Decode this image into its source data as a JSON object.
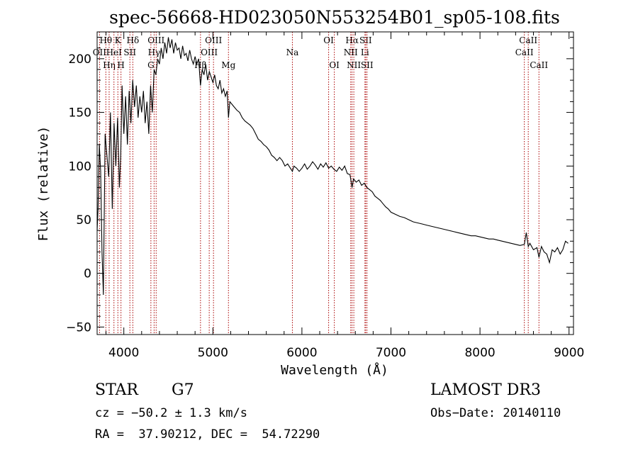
{
  "chart_data": {
    "type": "line",
    "title": "spec-56668-HD023050N553254B01_sp05-108.fits",
    "xlabel": "Wavelength (Å)",
    "ylabel": "Flux (relative)",
    "xlim": [
      3700,
      9050
    ],
    "ylim": [
      -57,
      225
    ],
    "xticks": [
      4000,
      5000,
      6000,
      7000,
      8000,
      9000
    ],
    "yticks": [
      -50,
      0,
      50,
      100,
      150,
      200
    ],
    "grid": false,
    "line_color": "#000000",
    "marker_color": "#aa0000",
    "series": [
      {
        "x": [
          3700,
          3710,
          3725,
          3740,
          3755,
          3770,
          3790,
          3810,
          3830,
          3850,
          3870,
          3890,
          3910,
          3930,
          3950,
          3965,
          3980,
          4000,
          4020,
          4040,
          4060,
          4080,
          4100,
          4120,
          4140,
          4160,
          4180,
          4200,
          4220,
          4240,
          4260,
          4280,
          4300,
          4320,
          4340,
          4360,
          4380,
          4400,
          4420,
          4440,
          4460,
          4480,
          4500,
          4520,
          4540,
          4560,
          4580,
          4600,
          4620,
          4640,
          4660,
          4680,
          4700,
          4720,
          4740,
          4760,
          4780,
          4800,
          4820,
          4840,
          4861,
          4880,
          4900,
          4920,
          4940,
          4960,
          4980,
          5000,
          5020,
          5040,
          5060,
          5080,
          5100,
          5120,
          5140,
          5160,
          5175,
          5190,
          5210,
          5240,
          5270,
          5300,
          5330,
          5360,
          5390,
          5420,
          5450,
          5480,
          5510,
          5540,
          5570,
          5600,
          5630,
          5660,
          5690,
          5720,
          5750,
          5780,
          5810,
          5840,
          5870,
          5893,
          5910,
          5940,
          5970,
          6000,
          6030,
          6060,
          6090,
          6120,
          6150,
          6180,
          6210,
          6240,
          6270,
          6300,
          6330,
          6360,
          6390,
          6420,
          6450,
          6480,
          6510,
          6540,
          6563,
          6580,
          6610,
          6640,
          6670,
          6700,
          6730,
          6760,
          6790,
          6820,
          6850,
          6880,
          6910,
          6940,
          6970,
          7000,
          7050,
          7100,
          7150,
          7200,
          7250,
          7300,
          7350,
          7400,
          7450,
          7500,
          7550,
          7600,
          7650,
          7700,
          7750,
          7800,
          7850,
          7900,
          7950,
          8000,
          8050,
          8100,
          8150,
          8200,
          8250,
          8300,
          8350,
          8400,
          8450,
          8498,
          8520,
          8542,
          8560,
          8600,
          8640,
          8662,
          8690,
          8720,
          8750,
          8780,
          8810,
          8840,
          8870,
          8900,
          8930,
          8960,
          8990
        ],
        "y": [
          40,
          60,
          120,
          95,
          20,
          -20,
          130,
          110,
          90,
          150,
          60,
          140,
          100,
          145,
          80,
          110,
          175,
          130,
          165,
          120,
          170,
          140,
          180,
          155,
          175,
          145,
          165,
          150,
          170,
          140,
          160,
          130,
          175,
          150,
          190,
          185,
          200,
          195,
          210,
          200,
          215,
          205,
          220,
          210,
          218,
          205,
          215,
          208,
          210,
          200,
          212,
          203,
          205,
          198,
          208,
          200,
          195,
          202,
          195,
          200,
          175,
          190,
          185,
          195,
          180,
          188,
          183,
          178,
          185,
          175,
          172,
          180,
          168,
          172,
          165,
          170,
          145,
          160,
          158,
          155,
          152,
          150,
          145,
          142,
          140,
          138,
          135,
          130,
          125,
          123,
          120,
          118,
          115,
          110,
          108,
          105,
          108,
          105,
          100,
          102,
          98,
          95,
          100,
          98,
          95,
          98,
          102,
          97,
          100,
          104,
          101,
          97,
          102,
          99,
          103,
          98,
          100,
          97,
          95,
          99,
          96,
          100,
          93,
          92,
          80,
          88,
          85,
          87,
          82,
          84,
          80,
          78,
          76,
          72,
          70,
          68,
          65,
          62,
          60,
          57,
          55,
          53,
          52,
          50,
          48,
          47,
          46,
          45,
          44,
          43,
          42,
          41,
          40,
          39,
          38,
          37,
          36,
          35,
          35,
          34,
          33,
          32,
          32,
          31,
          30,
          29,
          28,
          27,
          26,
          27,
          38,
          25,
          28,
          22,
          24,
          15,
          25,
          20,
          18,
          10,
          22,
          20,
          24,
          18,
          22,
          30,
          28
        ]
      }
    ],
    "line_markers": [
      {
        "label": "Hθ",
        "x": 3798,
        "row": 0
      },
      {
        "label": "OII",
        "x": 3727,
        "row": 1
      },
      {
        "label": "Hη",
        "x": 3835,
        "row": 2
      },
      {
        "label": "K",
        "x": 3933,
        "row": 0
      },
      {
        "label": "HeI",
        "x": 3889,
        "row": 1
      },
      {
        "label": "H",
        "x": 3968,
        "row": 2
      },
      {
        "label": "Hδ",
        "x": 4101,
        "row": 0
      },
      {
        "label": "SII",
        "x": 4068,
        "row": 1
      },
      {
        "label": "OIII",
        "x": 4363,
        "row": 0
      },
      {
        "label": "Hγ",
        "x": 4340,
        "row": 1
      },
      {
        "label": "G",
        "x": 4304,
        "row": 2
      },
      {
        "label": "OIII",
        "x": 5007,
        "row": 0
      },
      {
        "label": "OIII",
        "x": 4959,
        "row": 1
      },
      {
        "label": "Hβ",
        "x": 4861,
        "row": 2
      },
      {
        "label": "Mg",
        "x": 5175,
        "row": 2
      },
      {
        "label": "Na",
        "x": 5893,
        "row": 1
      },
      {
        "label": "OI",
        "x": 6300,
        "row": 0
      },
      {
        "label": "OI",
        "x": 6364,
        "row": 2
      },
      {
        "label": "Hα",
        "x": 6563,
        "row": 0
      },
      {
        "label": "SII",
        "x": 6716,
        "row": 0
      },
      {
        "label": "NII",
        "x": 6548,
        "row": 1
      },
      {
        "label": "Li",
        "x": 6708,
        "row": 1
      },
      {
        "label": "NII",
        "x": 6583,
        "row": 2
      },
      {
        "label": "SII",
        "x": 6731,
        "row": 2
      },
      {
        "label": "CaII",
        "x": 8542,
        "row": 0
      },
      {
        "label": "CaII",
        "x": 8498,
        "row": 1
      },
      {
        "label": "CaII",
        "x": 8662,
        "row": 2
      }
    ]
  },
  "info": {
    "object_class": "STAR",
    "subclass": "G7",
    "survey": "LAMOST DR3",
    "cz": "cz = −50.2 ± 1.3 km/s",
    "obs_date": "Obs−Date: 20140110",
    "coords": "RA =  37.90212, DEC =  54.72290"
  }
}
